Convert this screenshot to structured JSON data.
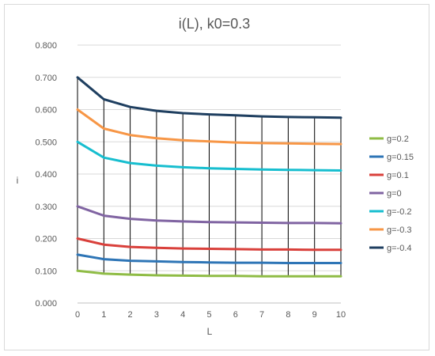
{
  "chart_data": {
    "type": "line",
    "title": "i(L), k0=0.3",
    "xlabel": "L",
    "ylabel": "i",
    "x": [
      0,
      1,
      2,
      3,
      4,
      5,
      6,
      7,
      8,
      9,
      10
    ],
    "x_tick_labels": [
      "0",
      "1",
      "2",
      "3",
      "4",
      "5",
      "6",
      "7",
      "8",
      "9",
      "10"
    ],
    "ylim": [
      0,
      0.8
    ],
    "y_tick_labels": [
      "0.000",
      "0.100",
      "0.200",
      "0.300",
      "0.400",
      "0.500",
      "0.600",
      "0.700",
      "0.800"
    ],
    "y_ticks": [
      0,
      0.1,
      0.2,
      0.3,
      0.4,
      0.5,
      0.6,
      0.7,
      0.8
    ],
    "grid": "horizontal gridlines plus vertical drop lines at each x",
    "legend_position": "right",
    "series": [
      {
        "name": "g=0.2",
        "color": "#8fbc45",
        "values": [
          0.1,
          0.091,
          0.088,
          0.086,
          0.085,
          0.084,
          0.084,
          0.083,
          0.083,
          0.083,
          0.083
        ]
      },
      {
        "name": "g=0.15",
        "color": "#2e75b6",
        "values": [
          0.15,
          0.136,
          0.131,
          0.129,
          0.127,
          0.126,
          0.125,
          0.125,
          0.124,
          0.124,
          0.124
        ]
      },
      {
        "name": "g=0.1",
        "color": "#d9403b",
        "values": [
          0.2,
          0.181,
          0.174,
          0.171,
          0.169,
          0.168,
          0.167,
          0.166,
          0.166,
          0.165,
          0.165
        ]
      },
      {
        "name": "g=0",
        "color": "#8064a2",
        "values": [
          0.3,
          0.271,
          0.261,
          0.256,
          0.253,
          0.251,
          0.25,
          0.249,
          0.248,
          0.248,
          0.247
        ]
      },
      {
        "name": "g=-0.2",
        "color": "#17becf",
        "values": [
          0.5,
          0.451,
          0.434,
          0.426,
          0.421,
          0.418,
          0.416,
          0.414,
          0.413,
          0.412,
          0.411
        ]
      },
      {
        "name": "g=-0.3",
        "color": "#f79646",
        "values": [
          0.6,
          0.541,
          0.521,
          0.511,
          0.505,
          0.501,
          0.498,
          0.496,
          0.495,
          0.494,
          0.493
        ]
      },
      {
        "name": "g=-0.4",
        "color": "#1f3f60",
        "values": [
          0.7,
          0.632,
          0.608,
          0.596,
          0.589,
          0.585,
          0.582,
          0.579,
          0.577,
          0.576,
          0.575
        ]
      }
    ]
  }
}
